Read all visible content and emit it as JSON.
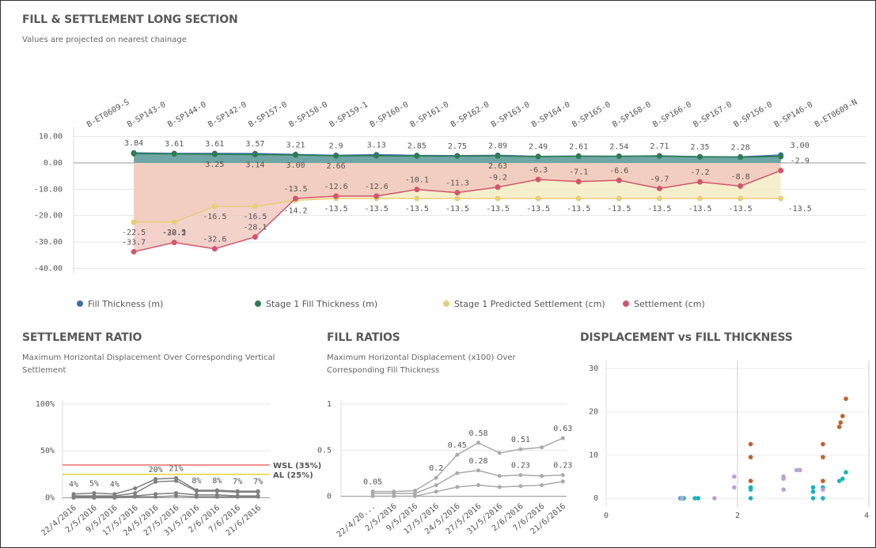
{
  "chart_data": [
    {
      "type": "line",
      "title": "FILL & SETTLEMENT LONG SECTION",
      "subtitle": "Values are projected on nearest chainage",
      "categories": [
        "B-ET0609-S",
        "B-SP143-0",
        "B-SP144-0",
        "B-SP142-0",
        "B-SP157-0",
        "B-SP158-0",
        "B-SP159-1",
        "B-SP160-0",
        "B-SP161-0",
        "B-SP162-0",
        "B-SP163-0",
        "B-SP164-0",
        "B-SP165-0",
        "B-SP168-0",
        "B-SP166-0",
        "B-SP167-0",
        "B-SP156-0",
        "B-SP146-0",
        "B-ET0609-N"
      ],
      "ylim": [
        -42,
        12
      ],
      "yticks": [
        {
          "value": 10,
          "label": "10.00"
        },
        {
          "value": 0,
          "label": "0.00"
        },
        {
          "value": -10,
          "label": "-10.00"
        },
        {
          "value": -20,
          "label": "-20.00"
        },
        {
          "value": -30,
          "label": "-30.00"
        },
        {
          "value": -40,
          "label": "-40.00"
        }
      ],
      "grid": true,
      "legend_position": "bottom",
      "series": [
        {
          "name": "Fill Thickness (m)",
          "color": "#3d6fa3",
          "fill": "#5f9c9b",
          "values": [
            null,
            3.84,
            3.61,
            3.61,
            3.57,
            3.21,
            2.9,
            3.13,
            2.85,
            2.75,
            2.89,
            2.49,
            2.61,
            2.54,
            2.71,
            2.35,
            2.28,
            3.0,
            null
          ],
          "value_labels": [
            null,
            "3.84",
            "3.61",
            "3.61",
            "3.57",
            "3.21",
            "2.9",
            "3.13",
            "2.85",
            "2.75",
            "2.89",
            "2.49",
            "2.61",
            "2.54",
            "2.71",
            "2.35",
            "2.28",
            "3.00",
            null
          ]
        },
        {
          "name": "Stage 1 Fill Thickness (m)",
          "color": "#2e7d4f",
          "values": [
            null,
            3.5,
            3.4,
            3.25,
            3.14,
            3.0,
            2.66,
            2.7,
            2.6,
            2.6,
            2.63,
            2.4,
            2.5,
            2.5,
            2.6,
            2.3,
            2.2,
            2.4,
            null
          ],
          "value_labels": [
            null,
            null,
            null,
            "3.25",
            "3.14",
            "3.00",
            "2.66",
            null,
            null,
            null,
            "2.63",
            null,
            null,
            null,
            null,
            null,
            null,
            null,
            null
          ]
        },
        {
          "name": "Stage 1 Predicted Settlement (cm)",
          "color": "#e8cd7a",
          "fill": "#f5edc9",
          "values": [
            null,
            -22.5,
            -22.5,
            -16.5,
            -16.5,
            -14.2,
            -13.5,
            -13.5,
            -13.5,
            -13.5,
            -13.5,
            -13.5,
            -13.5,
            -13.5,
            -13.5,
            -13.5,
            -13.5,
            -13.5,
            null
          ]
        },
        {
          "name": "Settlement (cm)",
          "color": "#d2566b",
          "fill": "#efc3b9",
          "values": [
            null,
            -33.7,
            -30.2,
            -32.6,
            -28.1,
            -13.5,
            -12.6,
            -12.6,
            -10.1,
            -11.3,
            -9.2,
            -6.3,
            -7.1,
            -6.6,
            -9.7,
            -7.2,
            -8.8,
            -2.9,
            null
          ]
        }
      ]
    },
    {
      "type": "line",
      "title": "SETTLEMENT RATIO",
      "subtitle": "Maximum Horizontal Displacement Over Corresponding Vertical Settlement",
      "categories": [
        "22/4/2016",
        "2/5/2016",
        "9/5/2016",
        "17/5/2016",
        "24/5/2016",
        "27/5/2016",
        "31/5/2016",
        "2/6/2016",
        "7/6/2016",
        "21/6/2016"
      ],
      "ylim": [
        -3,
        100
      ],
      "yticks": [
        {
          "value": 0,
          "label": "0%"
        },
        {
          "value": 50,
          "label": "50%"
        },
        {
          "value": 100,
          "label": "100%"
        }
      ],
      "reference_lines": [
        {
          "value": 35,
          "label": "WSL (35%)",
          "color": "#f07065"
        },
        {
          "value": 25,
          "label": "AL (25%)",
          "color": "#e8d23a"
        }
      ],
      "series": [
        {
          "color": "#7f7f7f",
          "values": [
            4,
            5,
            4,
            10,
            20,
            21,
            8,
            8,
            7,
            7
          ],
          "value_labels": [
            "4%",
            "5%",
            "4%",
            null,
            "20%",
            "21%",
            "8%",
            "8%",
            "7%",
            "7%"
          ]
        },
        {
          "color": "#7f7f7f",
          "values": [
            2,
            2,
            2,
            5,
            17,
            18,
            7,
            7,
            6,
            6
          ]
        },
        {
          "color": "#7f7f7f",
          "values": [
            1,
            1,
            1,
            2,
            4,
            5,
            3,
            3,
            2,
            2
          ]
        },
        {
          "color": "#7f7f7f",
          "values": [
            0,
            0,
            0,
            1,
            1,
            2,
            1,
            1,
            1,
            1
          ]
        }
      ]
    },
    {
      "type": "line",
      "title": "FILL RATIOS",
      "subtitle": "Maximum Horizontal Displacement (x100) Over Corresponding Fill Thickness",
      "categories": [
        "22/4/20...",
        "2/5/2016",
        "9/5/2016",
        "17/5/2016",
        "24/5/2016",
        "27/5/2016",
        "31/5/2016",
        "2/6/2016",
        "7/6/2016",
        "21/6/2016"
      ],
      "ylim": [
        -0.03,
        1
      ],
      "yticks": [
        0,
        0.5,
        1
      ],
      "series": [
        {
          "color": "#aaaaaa",
          "values": [
            0.05,
            0.05,
            0.06,
            0.2,
            0.45,
            0.58,
            0.47,
            0.51,
            0.53,
            0.63
          ],
          "value_labels": [
            "0.05",
            null,
            null,
            "0.2",
            "0.45",
            "0.58",
            null,
            "0.51",
            null,
            "0.63"
          ]
        },
        {
          "color": "#aaaaaa",
          "values": [
            0.03,
            0.03,
            0.03,
            0.12,
            0.25,
            0.28,
            0.22,
            0.23,
            0.22,
            0.23
          ],
          "value_labels": [
            null,
            null,
            null,
            null,
            null,
            "0.28",
            null,
            "0.23",
            null,
            "0.23"
          ]
        },
        {
          "color": "#aaaaaa",
          "values": [
            0,
            0,
            0,
            0.05,
            0.1,
            0.12,
            0.1,
            0.11,
            0.12,
            0.16
          ]
        }
      ]
    },
    {
      "type": "scatter",
      "title": "DISPLACEMENT vs FILL THICKNESS",
      "xlim": [
        0,
        4
      ],
      "xticks": [
        0,
        2,
        4
      ],
      "ylim": [
        -2,
        30
      ],
      "yticks": [
        0,
        10,
        20,
        30
      ],
      "grid": true,
      "series": [
        {
          "color": "#c0622a",
          "x": [
            1.13,
            1.18,
            2.2,
            2.2,
            2.2,
            3.3,
            3.3,
            3.3,
            3.55,
            3.57,
            3.6,
            3.65
          ],
          "values": [
            0,
            0,
            12.5,
            9.5,
            4,
            12.5,
            9.5,
            4,
            16.5,
            17.5,
            19,
            23
          ]
        },
        {
          "color": "#19b4be",
          "x": [
            1.13,
            1.18,
            1.35,
            1.4,
            2.2,
            2.2,
            2.2,
            3.15,
            3.15,
            3.15,
            3.3,
            3.3,
            3.55,
            3.6,
            3.65
          ],
          "values": [
            0,
            0,
            0,
            0,
            2.5,
            2,
            0,
            2.5,
            1.5,
            0,
            2.5,
            0,
            4,
            4.5,
            6
          ]
        },
        {
          "color": "#b9a2d6",
          "x": [
            1.15,
            1.65,
            1.95,
            1.95,
            2.7,
            2.7,
            2.7,
            2.9,
            2.95,
            3.3
          ],
          "values": [
            0,
            0,
            5,
            2.5,
            5,
            4.5,
            2,
            6.5,
            6.5,
            2
          ]
        }
      ]
    }
  ]
}
